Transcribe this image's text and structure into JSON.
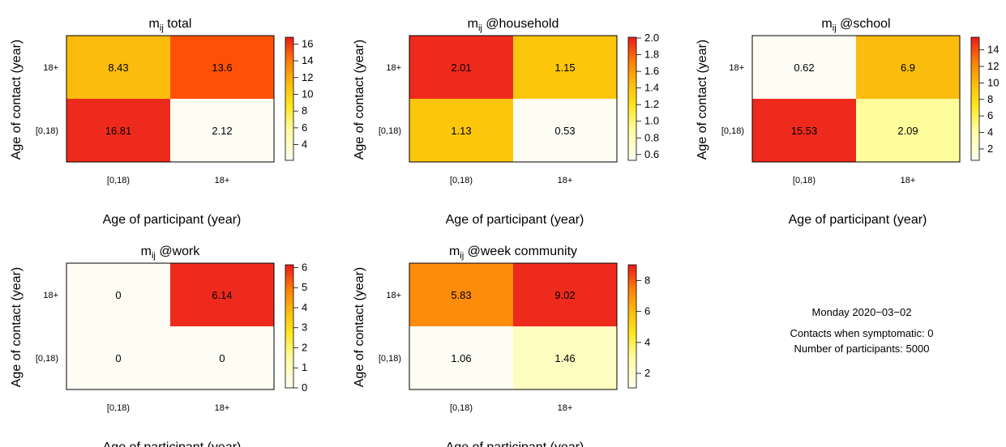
{
  "chart_data": [
    {
      "type": "heatmap",
      "title": "m",
      "title_sub": "ij",
      "title_rest": " total",
      "xlabel": "Age of participant (year)",
      "ylabel": "Age of contact (year)",
      "x_categories": [
        "[0,18)",
        "18+"
      ],
      "y_categories": [
        "[0,18)",
        "18+"
      ],
      "values": [
        [
          16.81,
          2.12
        ],
        [
          8.43,
          13.6
        ]
      ],
      "cell_labels": [
        [
          "16.81",
          "2.12"
        ],
        [
          "8.43",
          "13.6"
        ]
      ],
      "colors": [
        [
          "#ee2a1c",
          "#fdfdf4"
        ],
        [
          "#fcbc0e",
          "#fd5206"
        ]
      ],
      "colorbar_ticks": [
        "4",
        "6",
        "8",
        "10",
        "12",
        "14",
        "16"
      ],
      "colorbar_range": [
        2.12,
        16.81
      ]
    },
    {
      "type": "heatmap",
      "title": "m",
      "title_sub": "ij",
      "title_rest": " @household",
      "xlabel": "Age of participant (year)",
      "ylabel": "Age of contact (year)",
      "x_categories": [
        "[0,18)",
        "18+"
      ],
      "y_categories": [
        "[0,18)",
        "18+"
      ],
      "values": [
        [
          1.13,
          0.53
        ],
        [
          2.01,
          1.15
        ]
      ],
      "cell_labels": [
        [
          "1.13",
          "0.53"
        ],
        [
          "2.01",
          "1.15"
        ]
      ],
      "colors": [
        [
          "#fcc60a",
          "#fdfdf4"
        ],
        [
          "#ee2a1c",
          "#fcc60a"
        ]
      ],
      "colorbar_ticks": [
        "0.6",
        "0.8",
        "1.0",
        "1.2",
        "1.4",
        "1.6",
        "1.8",
        "2.0"
      ],
      "colorbar_range": [
        0.53,
        2.01
      ]
    },
    {
      "type": "heatmap",
      "title": "m",
      "title_sub": "ij",
      "title_rest": " @school",
      "xlabel": "Age of participant (year)",
      "ylabel": "Age of contact (year)",
      "x_categories": [
        "[0,18)",
        "18+"
      ],
      "y_categories": [
        "[0,18)",
        "18+"
      ],
      "values": [
        [
          15.53,
          2.09
        ],
        [
          0.62,
          6.9
        ]
      ],
      "cell_labels": [
        [
          "15.53",
          "2.09"
        ],
        [
          "0.62",
          "6.9"
        ]
      ],
      "colors": [
        [
          "#ee2a1c",
          "#fefd9b"
        ],
        [
          "#fdfdf4",
          "#fcbc0e"
        ]
      ],
      "colorbar_ticks": [
        "2",
        "4",
        "6",
        "8",
        "10",
        "12",
        "14"
      ],
      "colorbar_range": [
        0.62,
        15.53
      ]
    },
    {
      "type": "heatmap",
      "title": "m",
      "title_sub": "ij",
      "title_rest": " @work",
      "xlabel": "Age of participant (year)",
      "ylabel": "Age of contact (year)",
      "x_categories": [
        "[0,18)",
        "18+"
      ],
      "y_categories": [
        "[0,18)",
        "18+"
      ],
      "values": [
        [
          0,
          0
        ],
        [
          0,
          6.14
        ]
      ],
      "cell_labels": [
        [
          "0",
          "0"
        ],
        [
          "0",
          "6.14"
        ]
      ],
      "colors": [
        [
          "#fdfdf4",
          "#fdfdf4"
        ],
        [
          "#fdfdf4",
          "#ee2a1c"
        ]
      ],
      "colorbar_ticks": [
        "0",
        "1",
        "2",
        "3",
        "4",
        "5",
        "6"
      ],
      "colorbar_range": [
        0,
        6.14
      ]
    },
    {
      "type": "heatmap",
      "title": "m",
      "title_sub": "ij",
      "title_rest": " @week community",
      "xlabel": "Age of participant (year)",
      "ylabel": "Age of contact (year)",
      "x_categories": [
        "[0,18)",
        "18+"
      ],
      "y_categories": [
        "[0,18)",
        "18+"
      ],
      "values": [
        [
          1.06,
          1.46
        ],
        [
          5.83,
          9.02
        ]
      ],
      "cell_labels": [
        [
          "1.06",
          "1.46"
        ],
        [
          "5.83",
          "9.02"
        ]
      ],
      "colors": [
        [
          "#fdfdf4",
          "#fefdc0"
        ],
        [
          "#fc8c0a",
          "#ee2a1c"
        ]
      ],
      "colorbar_ticks": [
        "2",
        "4",
        "6",
        "8"
      ],
      "colorbar_range": [
        1.06,
        9.02
      ]
    }
  ],
  "info": {
    "date": "Monday 2020−03−02",
    "symptomatic": "Contacts when symptomatic: 0",
    "participants": "Number of participants: 5000"
  }
}
